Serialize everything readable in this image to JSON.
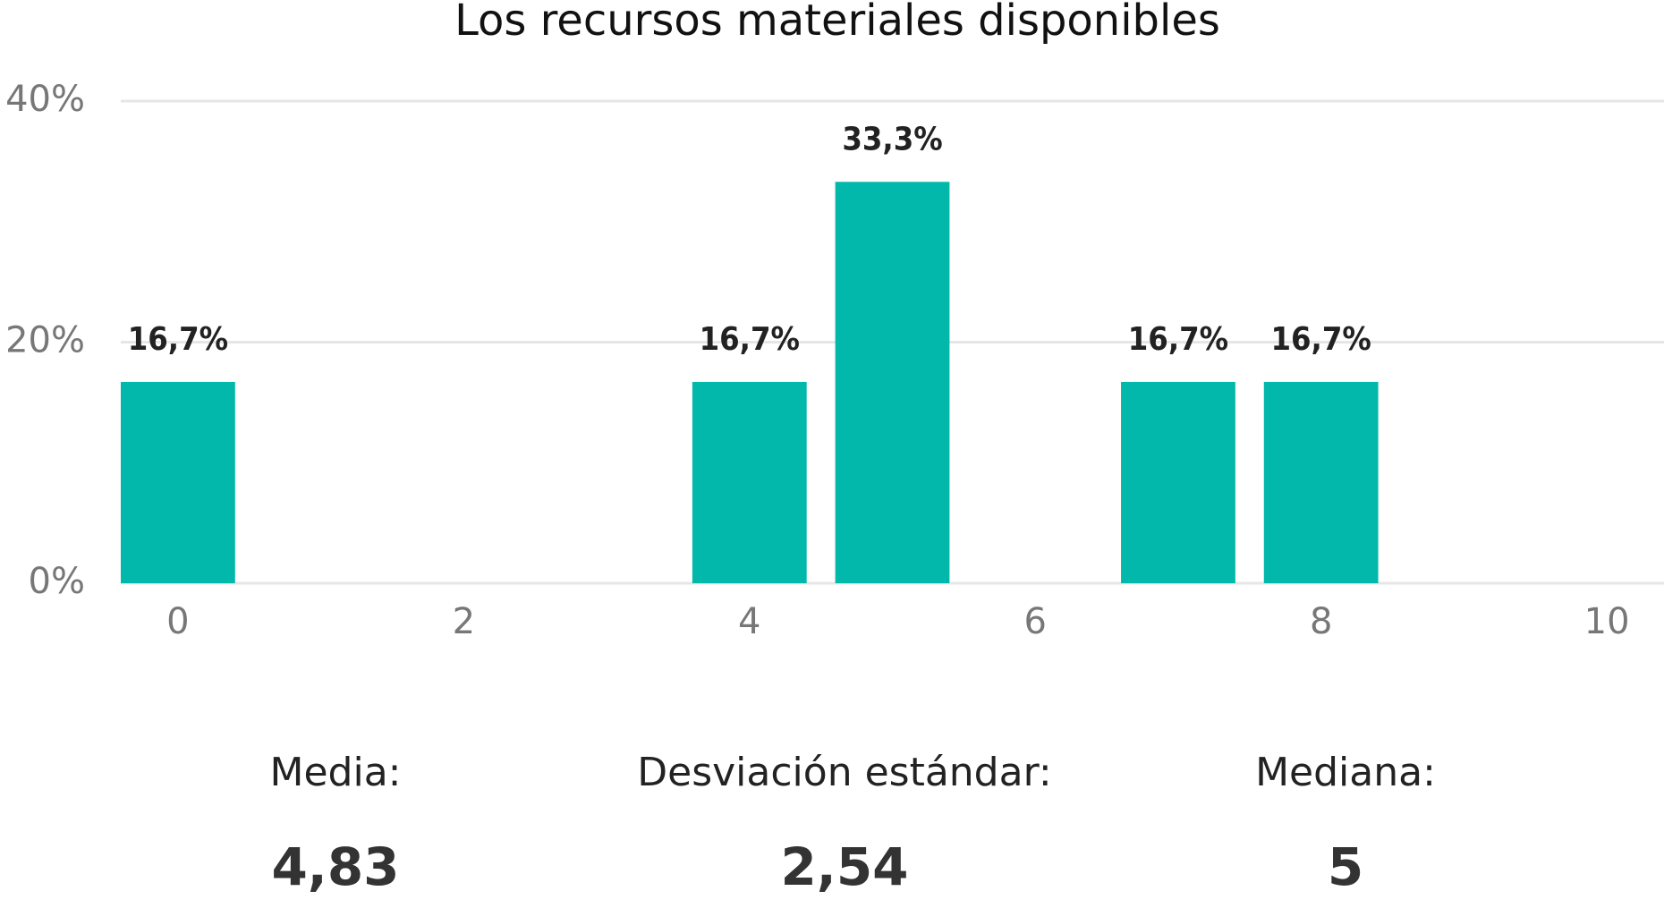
{
  "chart_data": {
    "type": "bar",
    "title": "Los recursos materiales disponibles",
    "x": [
      0,
      4,
      5,
      7,
      8
    ],
    "values": [
      16.7,
      16.7,
      33.3,
      16.7,
      16.7
    ],
    "value_labels": [
      "16,7%",
      "16,7%",
      "33,3%",
      "16,7%",
      "16,7%"
    ],
    "color": "#01b8aa",
    "xlim": [
      -0.4,
      10.4
    ],
    "xticks": [
      0,
      2,
      4,
      6,
      8,
      10
    ],
    "ylim": [
      0,
      40
    ],
    "yticks": [
      {
        "value": 0,
        "label": "0%"
      },
      {
        "value": 20,
        "label": "20%"
      },
      {
        "value": 40,
        "label": "40%"
      }
    ],
    "grid": true
  },
  "stats": [
    {
      "label": "Media:",
      "value": "4,83"
    },
    {
      "label": "Desviación estándar:",
      "value": "2,54"
    },
    {
      "label": "Mediana:",
      "value": "5"
    }
  ]
}
